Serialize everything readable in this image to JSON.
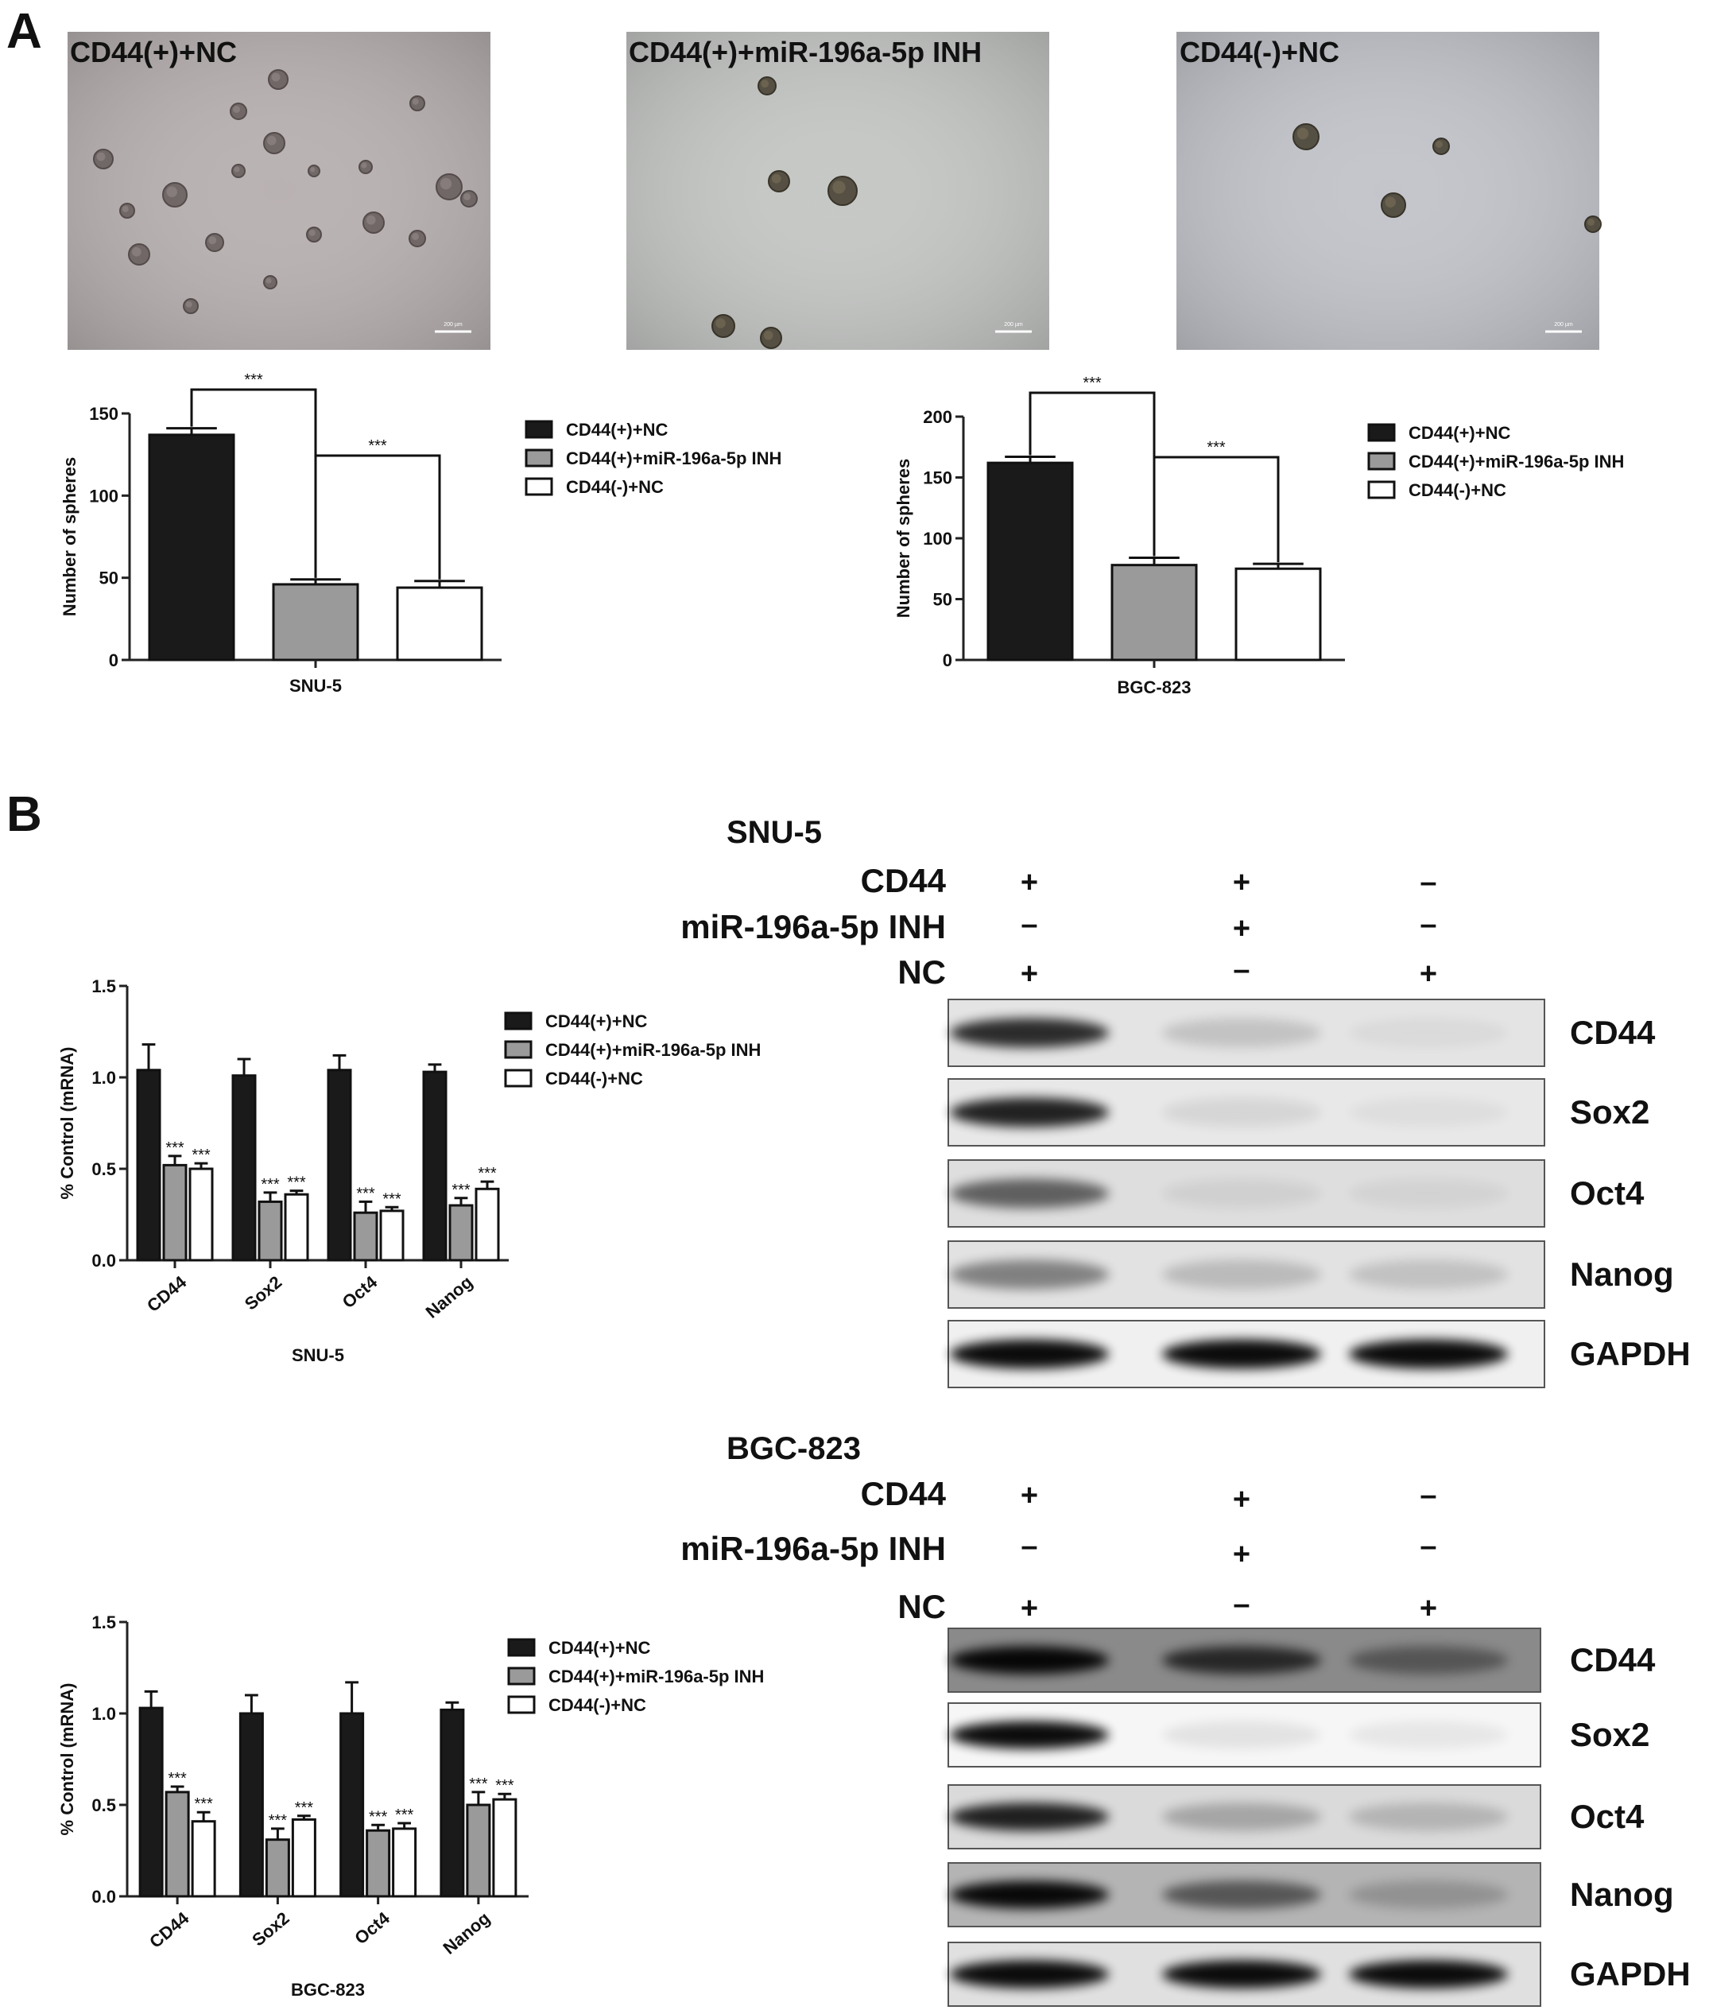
{
  "panel_labels": {
    "a": "A",
    "b": "B"
  },
  "micrographs": [
    {
      "title": "CD44(+)+NC",
      "scale_bar": "200 µm"
    },
    {
      "title": "CD44(+)+miR-196a-5p INH",
      "scale_bar": "200 µm"
    },
    {
      "title": "CD44(-)+NC",
      "scale_bar": "200 µm"
    }
  ],
  "colors": {
    "black_bar": "#1a1a1a",
    "gray_bar": "#9a9a9a",
    "white_bar": "#ffffff"
  },
  "legend": [
    "CD44(+)+NC",
    "CD44(+)+miR-196a-5p INH",
    "CD44(-)+NC"
  ],
  "chart_data": [
    {
      "type": "bar",
      "id": "spheres_snu5",
      "xlabel": "SNU-5",
      "ylabel": "Number of spheres",
      "ylim": [
        0,
        150
      ],
      "yticks": [
        0,
        50,
        100,
        150
      ],
      "series": [
        {
          "name": "CD44(+)+NC",
          "values": [
            137
          ],
          "errors": [
            4
          ]
        },
        {
          "name": "CD44(+)+miR-196a-5p INH",
          "values": [
            46
          ],
          "errors": [
            3
          ]
        },
        {
          "name": "CD44(-)+NC",
          "values": [
            44
          ],
          "errors": [
            4
          ]
        }
      ],
      "significance": [
        {
          "from": 0,
          "to": 1,
          "label": "***"
        },
        {
          "from": 1,
          "to": 2,
          "label": "***"
        }
      ]
    },
    {
      "type": "bar",
      "id": "spheres_bgc823",
      "xlabel": "BGC-823",
      "ylabel": "Number of spheres",
      "ylim": [
        0,
        200
      ],
      "yticks": [
        0,
        50,
        100,
        150,
        200
      ],
      "series": [
        {
          "name": "CD44(+)+NC",
          "values": [
            162
          ],
          "errors": [
            5
          ]
        },
        {
          "name": "CD44(+)+miR-196a-5p INH",
          "values": [
            78
          ],
          "errors": [
            6
          ]
        },
        {
          "name": "CD44(-)+NC",
          "values": [
            75
          ],
          "errors": [
            4
          ]
        }
      ],
      "significance": [
        {
          "from": 0,
          "to": 1,
          "label": "***"
        },
        {
          "from": 1,
          "to": 2,
          "label": "***"
        }
      ]
    },
    {
      "type": "bar",
      "id": "mrna_snu5",
      "xlabel": "SNU-5",
      "ylabel": "% Control (mRNA)",
      "ylim": [
        0,
        1.5
      ],
      "yticks": [
        "0.0",
        "0.5",
        "1.0",
        "1.5"
      ],
      "categories": [
        "CD44",
        "Sox2",
        "Oct4",
        "Nanog"
      ],
      "series": [
        {
          "name": "CD44(+)+NC",
          "values": [
            1.04,
            1.01,
            1.04,
            1.03
          ],
          "errors": [
            0.14,
            0.09,
            0.08,
            0.04
          ]
        },
        {
          "name": "CD44(+)+miR-196a-5p INH",
          "values": [
            0.52,
            0.32,
            0.26,
            0.3
          ],
          "errors": [
            0.05,
            0.05,
            0.06,
            0.04
          ]
        },
        {
          "name": "CD44(-)+NC",
          "values": [
            0.5,
            0.36,
            0.27,
            0.39
          ],
          "errors": [
            0.03,
            0.02,
            0.02,
            0.04
          ]
        }
      ],
      "marker": "***"
    },
    {
      "type": "bar",
      "id": "mrna_bgc823",
      "xlabel": "BGC-823",
      "ylabel": "% Control (mRNA)",
      "ylim": [
        0,
        1.5
      ],
      "yticks": [
        "0.0",
        "0.5",
        "1.0",
        "1.5"
      ],
      "categories": [
        "CD44",
        "Sox2",
        "Oct4",
        "Nanog"
      ],
      "series": [
        {
          "name": "CD44(+)+NC",
          "values": [
            1.03,
            1.0,
            1.0,
            1.02
          ],
          "errors": [
            0.09,
            0.1,
            0.17,
            0.04
          ]
        },
        {
          "name": "CD44(+)+miR-196a-5p INH",
          "values": [
            0.57,
            0.31,
            0.36,
            0.5
          ],
          "errors": [
            0.03,
            0.06,
            0.03,
            0.07
          ]
        },
        {
          "name": "CD44(-)+NC",
          "values": [
            0.41,
            0.42,
            0.37,
            0.53
          ],
          "errors": [
            0.05,
            0.02,
            0.03,
            0.03
          ]
        }
      ],
      "marker": "***"
    }
  ],
  "blots": [
    {
      "cell_line": "SNU-5",
      "conditions": [
        {
          "label": "CD44",
          "signs": [
            "+",
            "+",
            "–"
          ]
        },
        {
          "label": "miR-196a-5p INH",
          "signs": [
            "–",
            "+",
            "–"
          ]
        },
        {
          "label": "NC",
          "signs": [
            "+",
            "–",
            "+"
          ]
        }
      ],
      "proteins": [
        {
          "name": "CD44",
          "intensity": [
            0.85,
            0.15,
            0.03
          ],
          "background": "#e4e4e4"
        },
        {
          "name": "Sox2",
          "intensity": [
            0.9,
            0.08,
            0.02
          ],
          "background": "#e8e8e8"
        },
        {
          "name": "Oct4",
          "intensity": [
            0.6,
            0.06,
            0.05
          ],
          "background": "#dedede"
        },
        {
          "name": "Nanog",
          "intensity": [
            0.45,
            0.18,
            0.15
          ],
          "background": "#e2e2e2"
        },
        {
          "name": "GAPDH",
          "intensity": [
            1.0,
            1.0,
            1.0
          ],
          "background": "#f0f0f0"
        }
      ]
    },
    {
      "cell_line": "BGC-823",
      "conditions": [
        {
          "label": "CD44",
          "signs": [
            "+",
            "+",
            "–"
          ]
        },
        {
          "label": "miR-196a-5p INH",
          "signs": [
            "–",
            "+",
            "–"
          ]
        },
        {
          "label": "NC",
          "signs": [
            "+",
            "–",
            "+"
          ]
        }
      ],
      "proteins": [
        {
          "name": "CD44",
          "intensity": [
            1.0,
            0.75,
            0.4
          ],
          "background": "#8a8a8a"
        },
        {
          "name": "Sox2",
          "intensity": [
            1.0,
            0.08,
            0.06
          ],
          "background": "#f6f6f6"
        },
        {
          "name": "Oct4",
          "intensity": [
            0.9,
            0.25,
            0.18
          ],
          "background": "#dadada"
        },
        {
          "name": "Nanog",
          "intensity": [
            1.0,
            0.55,
            0.2
          ],
          "background": "#b4b4b4"
        },
        {
          "name": "GAPDH",
          "intensity": [
            1.0,
            1.0,
            1.0
          ],
          "background": "#e0e0e0"
        }
      ]
    }
  ]
}
